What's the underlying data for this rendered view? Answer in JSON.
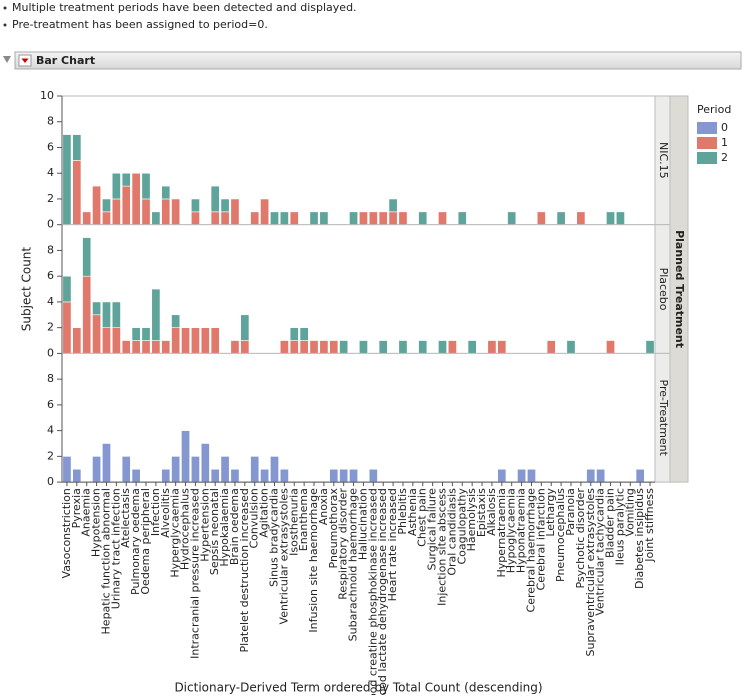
{
  "messages": [
    "Multiple treatment periods have been detected and displayed.",
    "Pre-treatment has been assigned to period=0."
  ],
  "outline_title": "Bar Chart",
  "chart_data": {
    "type": "bar",
    "stacked": true,
    "x_label": "Dictionary-Derived Term ordered by Total Count (descending)",
    "y_label": "Subject Count",
    "group_label": "Planned Treatment",
    "legend_title": "Period",
    "panels": [
      "NIC.15",
      "Placebo",
      "Pre-Treatment"
    ],
    "categories": [
      "Vasoconstriction",
      "Pyrexia",
      "Anaemia",
      "Hypotension",
      "Hepatic function abnormal",
      "Urinary tract infection",
      "Atelectasis",
      "Pulmonary oedema",
      "Oedema peripheral",
      "Infection",
      "Alveolitis",
      "Hyperglycaemia",
      "Hydrocephalus",
      "Intracranial pressure increased",
      "Hypertension",
      "Sepsis neonatal",
      "Hypokalaemia",
      "Brain oedema",
      "Platelet destruction increased",
      "Convulsion",
      "Agitation",
      "Sinus bradycardia",
      "Ventricular extrasystoles",
      "Isosthenuria",
      "Enanthema",
      "Infusion site haemorrhage",
      "Anoxia",
      "Pneumothorax",
      "Respiratory disorder",
      "Subarachnoid haemorrhage",
      "Hallucination",
      "Blood creatine phosphokinase increased",
      "Blood lactate dehydrogenase increased",
      "Heart rate increased",
      "Phlebitis",
      "Asthenia",
      "Chest pain",
      "Surgical failure",
      "Injection site abscess",
      "Oral candidiasis",
      "Coagulopathy",
      "Haemolysis",
      "Epistaxis",
      "Alkalosis",
      "Hypernatraemia",
      "Hypoglycaemia",
      "Hyponatraemia",
      "Cerebral haemorrhage",
      "Cerebral infarction",
      "Lethargy",
      "Pneumocephalus",
      "Paranoia",
      "Psychotic disorder",
      "Supraventricular extrasystoles",
      "Ventricular tachycardia",
      "Bladder pain",
      "Ileus paralytic",
      "Vomiting",
      "Diabetes insipidus",
      "Joint stiffness"
    ],
    "series": [
      {
        "name": "0",
        "color": "#8497d1",
        "values": [
          null,
          null,
          [
            2,
            1,
            0,
            2,
            3,
            0,
            2,
            1,
            0,
            0,
            1,
            2,
            4,
            2,
            3,
            1,
            2,
            1,
            0,
            2,
            1,
            2,
            1,
            0,
            0,
            0,
            0,
            1,
            1,
            1,
            0,
            1,
            0,
            0,
            0,
            0,
            0,
            0,
            0,
            0,
            0,
            0,
            0,
            0,
            1,
            0,
            1,
            1,
            0,
            0,
            0,
            0,
            0,
            1,
            1,
            0,
            0,
            0,
            1,
            0
          ]
        ]
      },
      {
        "name": "1",
        "color": "#e0796b",
        "values": [
          [
            0,
            5,
            1,
            3,
            1,
            2,
            3,
            4,
            2,
            0,
            2,
            2,
            0,
            1,
            0,
            1,
            1,
            2,
            0,
            1,
            2,
            0,
            0,
            1,
            0,
            0,
            0,
            0,
            0,
            0,
            1,
            1,
            1,
            1,
            1,
            0,
            0,
            0,
            1,
            0,
            0,
            0,
            0,
            0,
            0,
            0,
            0,
            0,
            1,
            0,
            0,
            0,
            1,
            0,
            0,
            0,
            0,
            0,
            0,
            0
          ],
          [
            4,
            2,
            6,
            3,
            2,
            2,
            1,
            1,
            1,
            1,
            1,
            2,
            2,
            2,
            2,
            2,
            0,
            1,
            1,
            0,
            0,
            0,
            1,
            1,
            1,
            1,
            1,
            1,
            0,
            0,
            0,
            0,
            0,
            0,
            0,
            0,
            0,
            0,
            0,
            1,
            0,
            0,
            0,
            1,
            1,
            0,
            0,
            0,
            0,
            1,
            0,
            0,
            0,
            0,
            0,
            1,
            0,
            0,
            0,
            0
          ],
          null
        ]
      },
      {
        "name": "2",
        "color": "#5ea49b",
        "values": [
          [
            7,
            2,
            0,
            0,
            1,
            2,
            1,
            0,
            2,
            1,
            1,
            0,
            0,
            1,
            0,
            2,
            1,
            0,
            0,
            0,
            0,
            1,
            1,
            0,
            0,
            1,
            1,
            0,
            0,
            1,
            0,
            0,
            0,
            1,
            0,
            0,
            1,
            0,
            0,
            0,
            1,
            0,
            0,
            0,
            0,
            1,
            0,
            0,
            0,
            0,
            1,
            0,
            0,
            0,
            0,
            1,
            1,
            0,
            0,
            0
          ],
          [
            2,
            0,
            3,
            1,
            2,
            2,
            0,
            1,
            1,
            4,
            0,
            1,
            0,
            0,
            0,
            0,
            0,
            0,
            2,
            0,
            0,
            0,
            0,
            1,
            1,
            0,
            0,
            0,
            1,
            0,
            1,
            0,
            1,
            0,
            1,
            0,
            1,
            0,
            1,
            0,
            0,
            1,
            0,
            0,
            0,
            0,
            0,
            0,
            0,
            0,
            0,
            1,
            0,
            0,
            0,
            0,
            0,
            0,
            0,
            1
          ],
          null
        ]
      }
    ],
    "ylim": [
      0,
      10
    ],
    "yticks": [
      0,
      2,
      4,
      6,
      8,
      10
    ]
  }
}
